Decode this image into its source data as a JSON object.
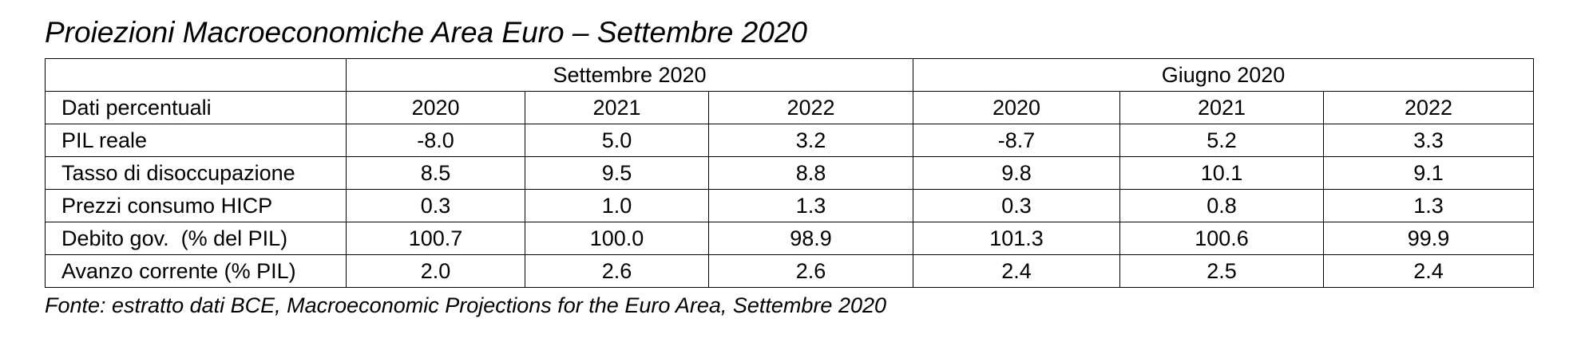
{
  "title": "Proiezioni Macroeconomiche Area Euro – Settembre 2020",
  "table": {
    "groups": [
      "Settembre 2020",
      "Giugno 2020"
    ],
    "header": [
      "Dati percentuali",
      "2020",
      "2021",
      "2022",
      "2020",
      "2021",
      "2022"
    ],
    "rows": [
      [
        "PIL reale",
        "-8.0",
        "5.0",
        "3.2",
        "-8.7",
        "5.2",
        "3.3"
      ],
      [
        "Tasso di disoccupazione",
        "8.5",
        "9.5",
        "8.8",
        "9.8",
        "10.1",
        "9.1"
      ],
      [
        "Prezzi consumo HICP",
        "0.3",
        "1.0",
        "1.3",
        "0.3",
        "0.8",
        "1.3"
      ],
      [
        "Debito gov.  (% del PIL)",
        "100.7",
        "100.0",
        "98.9",
        "101.3",
        "100.6",
        "99.9"
      ],
      [
        "Avanzo corrente (% PIL)",
        "2.0",
        "2.6",
        "2.6",
        "2.4",
        "2.5",
        "2.4"
      ]
    ]
  },
  "footer": "Fonte: estratto dati BCE, Macroeconomic Projections for the Euro Area, Settembre 2020"
}
